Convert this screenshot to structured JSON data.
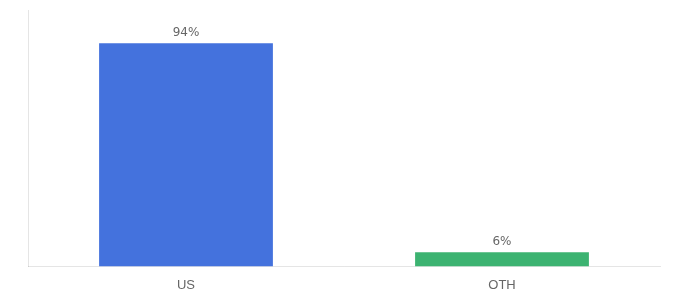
{
  "chart_data": {
    "type": "bar",
    "categories": [
      "US",
      "OTH"
    ],
    "values": [
      94,
      6
    ],
    "value_labels": [
      "94%",
      "6%"
    ],
    "data_labels": true,
    "colors": [
      "#4472DD",
      "#3CB371"
    ],
    "ylim": [
      0,
      108
    ],
    "tick_labels": "x",
    "grid": false
  }
}
